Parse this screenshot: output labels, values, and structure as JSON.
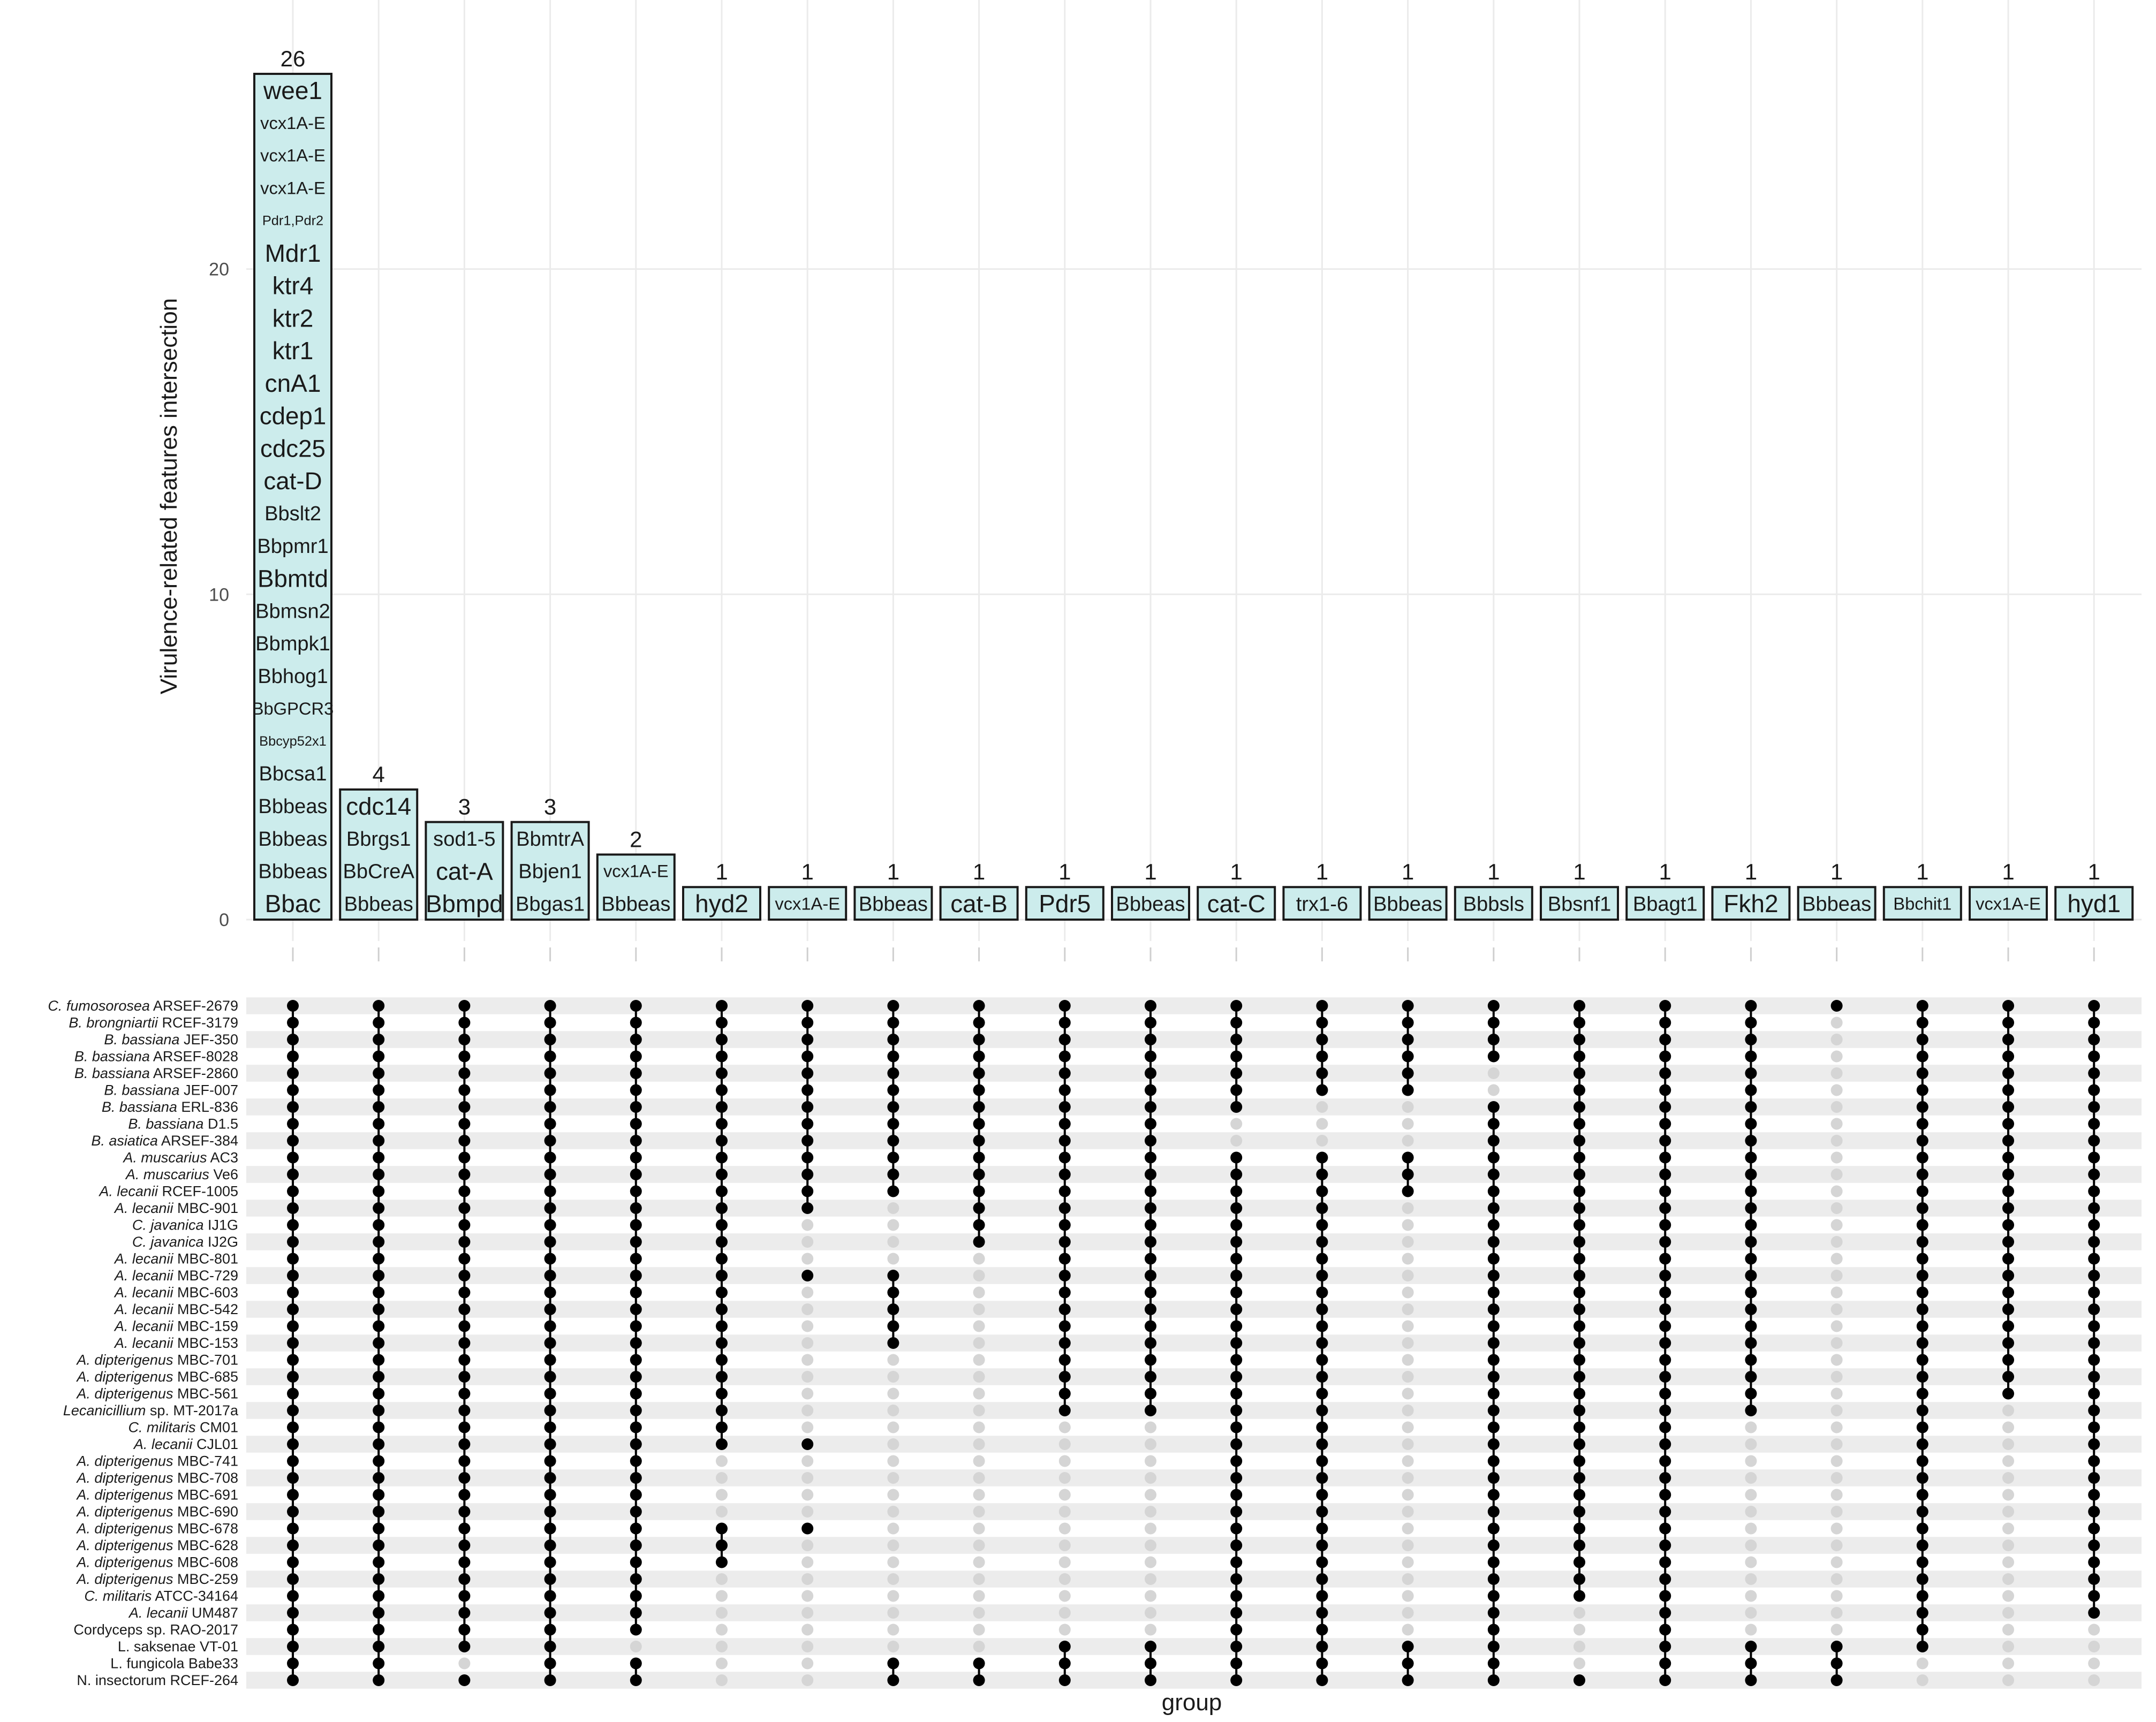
{
  "chart_data": {
    "type": "bar",
    "subtype": "upset",
    "ylabel": "Virulence-related features intersection",
    "xlabel": "group",
    "ylim": [
      0,
      26
    ],
    "yticks": [
      0,
      10,
      20
    ],
    "grid": true,
    "sets": [
      {
        "name": "C. fumosorosea ARSEF-2679",
        "italic": "C. fumosorosea",
        "rest": " ARSEF-2679"
      },
      {
        "name": "B. brongniartii RCEF-3179",
        "italic": "B. brongniartii",
        "rest": " RCEF-3179"
      },
      {
        "name": "B. bassiana JEF-350",
        "italic": "B. bassiana",
        "rest": " JEF-350"
      },
      {
        "name": "B. bassiana ARSEF-8028",
        "italic": "B. bassiana",
        "rest": " ARSEF-8028"
      },
      {
        "name": "B. bassiana ARSEF-2860",
        "italic": "B. bassiana",
        "rest": " ARSEF-2860"
      },
      {
        "name": "B. bassiana JEF-007",
        "italic": "B. bassiana",
        "rest": " JEF-007"
      },
      {
        "name": "B. bassiana ERL-836",
        "italic": "B. bassiana",
        "rest": " ERL-836"
      },
      {
        "name": "B. bassiana D1.5",
        "italic": "B. bassiana",
        "rest": " D1.5"
      },
      {
        "name": "B. asiatica ARSEF-384",
        "italic": "B. asiatica",
        "rest": " ARSEF-384"
      },
      {
        "name": "A. muscarius AC3",
        "italic": "A. muscarius",
        "rest": " AC3",
        "highlight": "#e8141b"
      },
      {
        "name": "A. muscarius Ve6",
        "italic": "A. muscarius",
        "rest": " Ve6"
      },
      {
        "name": "A. lecanii RCEF-1005",
        "italic": "A. lecanii",
        "rest": " RCEF-1005"
      },
      {
        "name": "A. lecanii MBC-901",
        "italic": "A. lecanii",
        "rest": " MBC-901"
      },
      {
        "name": "C. javanica IJ1G",
        "italic": "C. javanica",
        "rest": " IJ1G"
      },
      {
        "name": "C. javanica IJ2G",
        "italic": "C. javanica",
        "rest": " IJ2G"
      },
      {
        "name": "A. lecanii MBC-801",
        "italic": "A. lecanii",
        "rest": " MBC-801"
      },
      {
        "name": "A. lecanii MBC-729",
        "italic": "A. lecanii",
        "rest": " MBC-729"
      },
      {
        "name": "A. lecanii MBC-603",
        "italic": "A. lecanii",
        "rest": " MBC-603"
      },
      {
        "name": "A. lecanii MBC-542",
        "italic": "A. lecanii",
        "rest": " MBC-542"
      },
      {
        "name": "A. lecanii MBC-159",
        "italic": "A. lecanii",
        "rest": " MBC-159"
      },
      {
        "name": "A. lecanii MBC-153",
        "italic": "A. lecanii",
        "rest": " MBC-153"
      },
      {
        "name": "A. dipterigenus MBC-701",
        "italic": "A. dipterigenus",
        "rest": " MBC-701"
      },
      {
        "name": "A. dipterigenus MBC-685",
        "italic": "A. dipterigenus",
        "rest": " MBC-685"
      },
      {
        "name": "A. dipterigenus MBC-561",
        "italic": "A. dipterigenus",
        "rest": " MBC-561"
      },
      {
        "name": "Lecanicillium sp. MT-2017a",
        "italic": "Lecanicillium",
        "rest": " sp. MT-2017a"
      },
      {
        "name": "C. militaris CM01",
        "italic": "C. militaris",
        "rest": " CM01"
      },
      {
        "name": "A. lecanii CJL01",
        "italic": "A. lecanii",
        "rest": " CJL01"
      },
      {
        "name": "A. dipterigenus MBC-741",
        "italic": "A. dipterigenus",
        "rest": " MBC-741"
      },
      {
        "name": "A. dipterigenus MBC-708",
        "italic": "A. dipterigenus",
        "rest": " MBC-708"
      },
      {
        "name": "A. dipterigenus MBC-691",
        "italic": "A. dipterigenus",
        "rest": " MBC-691"
      },
      {
        "name": "A. dipterigenus MBC-690",
        "italic": "A. dipterigenus",
        "rest": " MBC-690"
      },
      {
        "name": "A. dipterigenus MBC-678",
        "italic": "A. dipterigenus",
        "rest": " MBC-678"
      },
      {
        "name": "A. dipterigenus MBC-628",
        "italic": "A. dipterigenus",
        "rest": " MBC-628"
      },
      {
        "name": "A. dipterigenus MBC-608",
        "italic": "A. dipterigenus",
        "rest": " MBC-608"
      },
      {
        "name": "A. dipterigenus MBC-259",
        "italic": "A. dipterigenus",
        "rest": " MBC-259"
      },
      {
        "name": "C. militaris ATCC-34164",
        "italic": "C. militaris",
        "rest": " ATCC-34164"
      },
      {
        "name": "A. lecanii UM487",
        "italic": "A. lecanii",
        "rest": " UM487"
      },
      {
        "name": "Cordyceps sp. RAO-2017",
        "italic": "",
        "rest": "Cordyceps sp. RAO-2017"
      },
      {
        "name": "L. saksenae VT-01",
        "italic": "",
        "rest": "L. saksenae VT-01"
      },
      {
        "name": "L. fungicola Babe33",
        "italic": "",
        "rest": "L. fungicola Babe33"
      },
      {
        "name": "N. insectorum RCEF-264",
        "italic": "",
        "rest": "N. insectorum RCEF-264"
      }
    ],
    "intersections": [
      {
        "count": 26,
        "genes": [
          "Bbac",
          "Bbbeas",
          "Bbbeas",
          "Bbbeas",
          "Bbcsa1",
          "Bbcyp52x1",
          "BbGPCR3",
          "Bbhog1",
          "Bbmpk1",
          "Bbmsn2",
          "Bbmtd",
          "Bbpmr1",
          "Bbslt2",
          "cat-D",
          "cdc25",
          "cdep1",
          "cnA1",
          "ktr1",
          "ktr2",
          "ktr4",
          "Mdr1",
          "Pdr1,Pdr2",
          "vcx1A-E",
          "vcx1A-E",
          "vcx1A-E",
          "wee1"
        ],
        "absent": []
      },
      {
        "count": 4,
        "genes": [
          "Bbbeas",
          "BbCreA",
          "Bbrgs1",
          "cdc14"
        ],
        "absent": []
      },
      {
        "count": 3,
        "genes": [
          "Bbmpd",
          "cat-A",
          "sod1-5"
        ],
        "absent": [
          39
        ]
      },
      {
        "count": 3,
        "genes": [
          "Bbgas1",
          "Bbjen1",
          "BbmtrA"
        ],
        "absent": []
      },
      {
        "count": 2,
        "genes": [
          "Bbbeas",
          "vcx1A-E"
        ],
        "absent": [
          38
        ]
      },
      {
        "count": 1,
        "genes": [
          "hyd2"
        ],
        "absent": [
          27,
          28,
          29,
          30,
          34,
          35,
          36,
          37,
          38,
          39,
          40
        ]
      },
      {
        "count": 1,
        "genes": [
          "vcx1A-E"
        ],
        "absent": [
          13,
          14,
          15,
          17,
          18,
          19,
          20,
          21,
          22,
          23,
          24,
          25,
          27,
          28,
          29,
          30,
          32,
          33,
          34,
          35,
          36,
          37,
          38,
          39,
          40
        ]
      },
      {
        "count": 1,
        "genes": [
          "Bbbeas"
        ],
        "absent": [
          12,
          13,
          14,
          15,
          21,
          22,
          23,
          24,
          25,
          26,
          27,
          28,
          29,
          30,
          31,
          32,
          33,
          34,
          35,
          36,
          37,
          38
        ]
      },
      {
        "count": 1,
        "genes": [
          "cat-B"
        ],
        "absent": [
          15,
          16,
          17,
          18,
          19,
          20,
          21,
          22,
          23,
          24,
          25,
          26,
          27,
          28,
          29,
          30,
          31,
          32,
          33,
          34,
          35,
          36,
          37,
          38
        ]
      },
      {
        "count": 1,
        "genes": [
          "Pdr5"
        ],
        "absent": [
          25,
          26,
          27,
          28,
          29,
          30,
          31,
          32,
          33,
          34,
          35,
          36,
          37
        ]
      },
      {
        "count": 1,
        "genes": [
          "Bbbeas"
        ],
        "absent": [
          25,
          26,
          27,
          28,
          29,
          30,
          31,
          32,
          33,
          34,
          35,
          36,
          37
        ]
      },
      {
        "count": 1,
        "genes": [
          "cat-C"
        ],
        "absent": [
          7,
          8
        ]
      },
      {
        "count": 1,
        "genes": [
          "trx1-6"
        ],
        "absent": [
          6,
          7,
          8
        ]
      },
      {
        "count": 1,
        "genes": [
          "Bbbeas"
        ],
        "absent": [
          6,
          7,
          8,
          12,
          13,
          14,
          15,
          16,
          17,
          18,
          19,
          20,
          21,
          22,
          23,
          24,
          25,
          26,
          27,
          28,
          29,
          30,
          31,
          32,
          33,
          34,
          35,
          36,
          37
        ]
      },
      {
        "count": 1,
        "genes": [
          "Bbbsls"
        ],
        "absent": [
          4,
          5
        ]
      },
      {
        "count": 1,
        "genes": [
          "Bbsnf1"
        ],
        "absent": [
          36,
          37,
          38,
          39
        ]
      },
      {
        "count": 1,
        "genes": [
          "Bbagt1"
        ],
        "absent": []
      },
      {
        "count": 1,
        "genes": [
          "Fkh2"
        ],
        "absent": [
          25,
          26,
          27,
          28,
          29,
          30,
          31,
          32,
          33,
          34,
          35,
          36,
          37
        ]
      },
      {
        "count": 1,
        "genes": [
          "Bbbeas"
        ],
        "absent": [
          1,
          2,
          3,
          4,
          5,
          6,
          7,
          8,
          9,
          10,
          11,
          12,
          13,
          14,
          15,
          16,
          17,
          18,
          19,
          20,
          21,
          22,
          23,
          24,
          25,
          26,
          27,
          28,
          29,
          30,
          31,
          32,
          33,
          34,
          35,
          36,
          37
        ]
      },
      {
        "count": 1,
        "genes": [
          "Bbchit1"
        ],
        "absent": [
          39,
          40
        ]
      },
      {
        "count": 1,
        "genes": [
          "vcx1A-E"
        ],
        "absent": [
          24,
          25,
          26,
          27,
          28,
          29,
          30,
          31,
          32,
          33,
          34,
          35,
          36,
          37,
          38,
          39,
          40
        ]
      },
      {
        "count": 1,
        "genes": [
          "hyd1"
        ],
        "absent": [
          37,
          38,
          39,
          40
        ]
      }
    ]
  }
}
